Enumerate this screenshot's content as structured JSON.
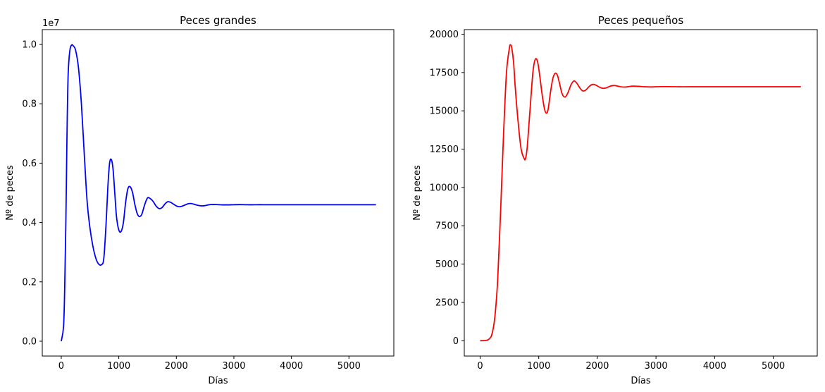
{
  "chart_data": [
    {
      "type": "line",
      "title": "Peces grandes",
      "xlabel": "Días",
      "ylabel": "Nº de peces",
      "offset_text": "1e7",
      "xlim": [
        -330,
        5780
      ],
      "ylim": [
        -0.05,
        1.05
      ],
      "x_ticks": [
        0,
        1000,
        2000,
        3000,
        4000,
        5000
      ],
      "x_tick_labels": [
        "0",
        "1000",
        "2000",
        "3000",
        "4000",
        "5000"
      ],
      "y_ticks": [
        0.0,
        0.2,
        0.4,
        0.6,
        0.8,
        1.0
      ],
      "y_tick_labels": [
        "0.0",
        "0.2",
        "0.4",
        "0.6",
        "0.8",
        "1.0"
      ],
      "series": [
        {
          "name": "Peces grandes",
          "color": "#0000ff",
          "x": [
            0,
            40,
            60,
            80,
            100,
            120,
            150,
            180,
            210,
            250,
            300,
            350,
            400,
            450,
            500,
            550,
            600,
            650,
            700,
            740,
            780,
            810,
            840,
            870,
            900,
            930,
            960,
            1000,
            1040,
            1080,
            1120,
            1160,
            1200,
            1240,
            1280,
            1320,
            1360,
            1400,
            1450,
            1500,
            1550,
            1600,
            1650,
            1700,
            1750,
            1800,
            1850,
            1900,
            1950,
            2000,
            2050,
            2100,
            2150,
            2200,
            2250,
            2300,
            2350,
            2400,
            2450,
            2500,
            2550,
            2600,
            2700,
            2800,
            2900,
            3000,
            3100,
            3200,
            3300,
            3400,
            3500,
            3600,
            3800,
            4000,
            4500,
            5000,
            5470
          ],
          "values": [
            0.0,
            0.05,
            0.18,
            0.4,
            0.7,
            0.9,
            0.98,
            0.998,
            0.995,
            0.98,
            0.92,
            0.8,
            0.63,
            0.47,
            0.38,
            0.32,
            0.28,
            0.26,
            0.258,
            0.28,
            0.4,
            0.52,
            0.6,
            0.612,
            0.58,
            0.5,
            0.42,
            0.375,
            0.37,
            0.4,
            0.47,
            0.515,
            0.52,
            0.5,
            0.46,
            0.43,
            0.42,
            0.428,
            0.46,
            0.483,
            0.48,
            0.47,
            0.455,
            0.447,
            0.45,
            0.462,
            0.47,
            0.468,
            0.462,
            0.456,
            0.453,
            0.455,
            0.459,
            0.463,
            0.464,
            0.462,
            0.459,
            0.457,
            0.456,
            0.457,
            0.459,
            0.4605,
            0.4605,
            0.4595,
            0.4595,
            0.46,
            0.4603,
            0.46,
            0.4598,
            0.46,
            0.46,
            0.46,
            0.46,
            0.46,
            0.46,
            0.46,
            0.46
          ]
        }
      ]
    },
    {
      "type": "line",
      "title": "Peces pequeños",
      "xlabel": "Días",
      "ylabel": "Nº de peces",
      "xlim": [
        -270,
        5750
      ],
      "ylim": [
        -1000,
        20300
      ],
      "x_ticks": [
        0,
        1000,
        2000,
        3000,
        4000,
        5000
      ],
      "x_tick_labels": [
        "0",
        "1000",
        "2000",
        "3000",
        "4000",
        "5000"
      ],
      "y_ticks": [
        0,
        2500,
        5000,
        7500,
        10000,
        12500,
        15000,
        17500,
        20000
      ],
      "y_tick_labels": [
        "0",
        "2500",
        "5000",
        "7500",
        "10000",
        "12500",
        "15000",
        "17500",
        "20000"
      ],
      "series": [
        {
          "name": "Peces pequeños",
          "color": "#ff0000",
          "x": [
            0,
            100,
            150,
            200,
            250,
            300,
            350,
            400,
            450,
            500,
            520,
            540,
            570,
            600,
            650,
            700,
            750,
            770,
            800,
            850,
            900,
            940,
            980,
            1020,
            1060,
            1100,
            1130,
            1160,
            1200,
            1240,
            1280,
            1320,
            1360,
            1400,
            1450,
            1500,
            1550,
            1600,
            1650,
            1700,
            1750,
            1800,
            1850,
            1900,
            1950,
            2000,
            2050,
            2100,
            2150,
            2200,
            2250,
            2300,
            2350,
            2400,
            2450,
            2500,
            2550,
            2600,
            2700,
            2800,
            2900,
            3000,
            3100,
            3200,
            3400,
            3600,
            4000,
            4500,
            5000,
            5470
          ],
          "values": [
            0,
            20,
            100,
            400,
            1500,
            4000,
            8500,
            13500,
            17500,
            19100,
            19300,
            19100,
            18200,
            16500,
            14200,
            12500,
            11900,
            11850,
            12500,
            15000,
            17500,
            18350,
            18200,
            17200,
            16000,
            15100,
            14850,
            15100,
            16200,
            17100,
            17450,
            17300,
            16700,
            16100,
            15900,
            16200,
            16700,
            16950,
            16800,
            16500,
            16300,
            16350,
            16550,
            16700,
            16720,
            16620,
            16520,
            16470,
            16500,
            16580,
            16640,
            16650,
            16610,
            16570,
            16550,
            16560,
            16590,
            16610,
            16600,
            16570,
            16560,
            16570,
            16580,
            16580,
            16570,
            16570,
            16570,
            16570,
            16570,
            16570
          ]
        }
      ]
    }
  ]
}
